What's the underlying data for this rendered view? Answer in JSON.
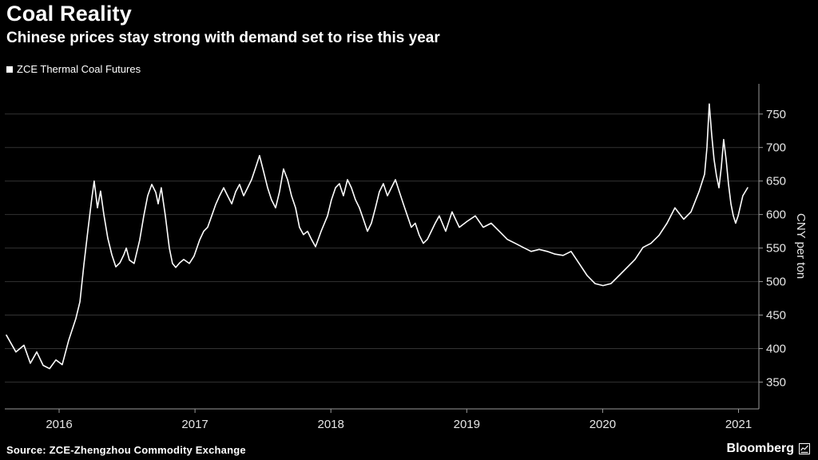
{
  "header": {
    "title": "Coal Reality",
    "subtitle": "Chinese prices stay strong with demand set to rise this year"
  },
  "legend": {
    "label": "ZCE Thermal Coal Futures"
  },
  "footer": {
    "source_label": "Source: ZCE-Zhengzhou Commodity Exchange",
    "brand": "Bloomberg"
  },
  "chart_data": {
    "type": "line",
    "title": "Coal Reality",
    "subtitle": "Chinese prices stay strong with demand set to rise this year",
    "xlabel": "",
    "ylabel": "CNY per ton",
    "legend_entries": [
      "ZCE Thermal Coal Futures"
    ],
    "legend_position": "top-left",
    "grid": true,
    "xlim": [
      2015.6,
      2021.15
    ],
    "ylim": [
      310,
      795
    ],
    "x_ticks": [
      2016,
      2017,
      2018,
      2019,
      2020,
      2021
    ],
    "y_ticks": [
      350,
      400,
      450,
      500,
      550,
      600,
      650,
      700,
      750
    ],
    "colors": {
      "background": "#000000",
      "line": "#ffffff",
      "grid": "#333333",
      "axis": "#9a9a9a",
      "text": "#e6e6e6"
    },
    "series": [
      {
        "name": "ZCE Thermal Coal Futures",
        "color": "#ffffff",
        "points": [
          [
            2015.612,
            420
          ],
          [
            2015.682,
            395
          ],
          [
            2015.741,
            405
          ],
          [
            2015.788,
            378
          ],
          [
            2015.835,
            395
          ],
          [
            2015.882,
            375
          ],
          [
            2015.929,
            370
          ],
          [
            2015.976,
            383
          ],
          [
            2016.023,
            376
          ],
          [
            2016.07,
            412
          ],
          [
            2016.123,
            445
          ],
          [
            2016.153,
            470
          ],
          [
            2016.182,
            525
          ],
          [
            2016.211,
            575
          ],
          [
            2016.241,
            625
          ],
          [
            2016.258,
            650
          ],
          [
            2016.282,
            610
          ],
          [
            2016.305,
            635
          ],
          [
            2016.329,
            600
          ],
          [
            2016.358,
            565
          ],
          [
            2016.388,
            540
          ],
          [
            2016.417,
            522
          ],
          [
            2016.447,
            528
          ],
          [
            2016.476,
            540
          ],
          [
            2016.494,
            550
          ],
          [
            2016.517,
            532
          ],
          [
            2016.552,
            527
          ],
          [
            2016.593,
            562
          ],
          [
            2016.623,
            598
          ],
          [
            2016.652,
            628
          ],
          [
            2016.682,
            645
          ],
          [
            2016.711,
            633
          ],
          [
            2016.729,
            616
          ],
          [
            2016.752,
            640
          ],
          [
            2016.782,
            598
          ],
          [
            2016.811,
            550
          ],
          [
            2016.834,
            527
          ],
          [
            2016.858,
            521
          ],
          [
            2016.887,
            528
          ],
          [
            2016.917,
            533
          ],
          [
            2016.958,
            527
          ],
          [
            2016.993,
            538
          ],
          [
            2017.034,
            562
          ],
          [
            2017.064,
            575
          ],
          [
            2017.093,
            581
          ],
          [
            2017.123,
            598
          ],
          [
            2017.152,
            615
          ],
          [
            2017.181,
            628
          ],
          [
            2017.211,
            640
          ],
          [
            2017.24,
            628
          ],
          [
            2017.27,
            616
          ],
          [
            2017.299,
            634
          ],
          [
            2017.328,
            645
          ],
          [
            2017.358,
            628
          ],
          [
            2017.387,
            640
          ],
          [
            2017.416,
            652
          ],
          [
            2017.446,
            670
          ],
          [
            2017.475,
            688
          ],
          [
            2017.505,
            664
          ],
          [
            2017.534,
            640
          ],
          [
            2017.563,
            622
          ],
          [
            2017.593,
            610
          ],
          [
            2017.622,
            634
          ],
          [
            2017.651,
            668
          ],
          [
            2017.681,
            652
          ],
          [
            2017.71,
            628
          ],
          [
            2017.74,
            610
          ],
          [
            2017.769,
            581
          ],
          [
            2017.798,
            570
          ],
          [
            2017.828,
            575
          ],
          [
            2017.857,
            563
          ],
          [
            2017.887,
            552
          ],
          [
            2017.928,
            575
          ],
          [
            2017.975,
            598
          ],
          [
            2018.004,
            622
          ],
          [
            2018.034,
            640
          ],
          [
            2018.063,
            646
          ],
          [
            2018.092,
            628
          ],
          [
            2018.122,
            652
          ],
          [
            2018.151,
            640
          ],
          [
            2018.181,
            622
          ],
          [
            2018.21,
            610
          ],
          [
            2018.239,
            593
          ],
          [
            2018.269,
            575
          ],
          [
            2018.298,
            587
          ],
          [
            2018.328,
            610
          ],
          [
            2018.357,
            634
          ],
          [
            2018.386,
            646
          ],
          [
            2018.416,
            628
          ],
          [
            2018.445,
            640
          ],
          [
            2018.475,
            652
          ],
          [
            2018.504,
            634
          ],
          [
            2018.533,
            616
          ],
          [
            2018.563,
            598
          ],
          [
            2018.592,
            581
          ],
          [
            2018.621,
            587
          ],
          [
            2018.651,
            569
          ],
          [
            2018.68,
            557
          ],
          [
            2018.71,
            563
          ],
          [
            2018.739,
            575
          ],
          [
            2018.768,
            587
          ],
          [
            2018.798,
            598
          ],
          [
            2018.845,
            575
          ],
          [
            2018.892,
            604
          ],
          [
            2018.945,
            581
          ],
          [
            2019.004,
            590
          ],
          [
            2019.063,
            598
          ],
          [
            2019.121,
            581
          ],
          [
            2019.18,
            587
          ],
          [
            2019.239,
            575
          ],
          [
            2019.298,
            563
          ],
          [
            2019.357,
            557
          ],
          [
            2019.415,
            551
          ],
          [
            2019.474,
            545
          ],
          [
            2019.533,
            548
          ],
          [
            2019.592,
            545
          ],
          [
            2019.65,
            541
          ],
          [
            2019.709,
            539
          ],
          [
            2019.768,
            545
          ],
          [
            2019.827,
            527
          ],
          [
            2019.886,
            509
          ],
          [
            2019.944,
            497
          ],
          [
            2020.003,
            494
          ],
          [
            2020.062,
            497
          ],
          [
            2020.121,
            509
          ],
          [
            2020.18,
            521
          ],
          [
            2020.238,
            533
          ],
          [
            2020.297,
            551
          ],
          [
            2020.356,
            557
          ],
          [
            2020.415,
            569
          ],
          [
            2020.474,
            587
          ],
          [
            2020.532,
            610
          ],
          [
            2020.597,
            593
          ],
          [
            2020.65,
            604
          ],
          [
            2020.709,
            634
          ],
          [
            2020.75,
            660
          ],
          [
            2020.768,
            700
          ],
          [
            2020.785,
            765
          ],
          [
            2020.803,
            718
          ],
          [
            2020.82,
            682
          ],
          [
            2020.838,
            658
          ],
          [
            2020.856,
            640
          ],
          [
            2020.873,
            670
          ],
          [
            2020.891,
            712
          ],
          [
            2020.909,
            682
          ],
          [
            2020.926,
            646
          ],
          [
            2020.944,
            616
          ],
          [
            2020.962,
            598
          ],
          [
            2020.979,
            587
          ],
          [
            2020.997,
            598
          ],
          [
            2021.032,
            628
          ],
          [
            2021.067,
            640
          ]
        ]
      }
    ]
  }
}
